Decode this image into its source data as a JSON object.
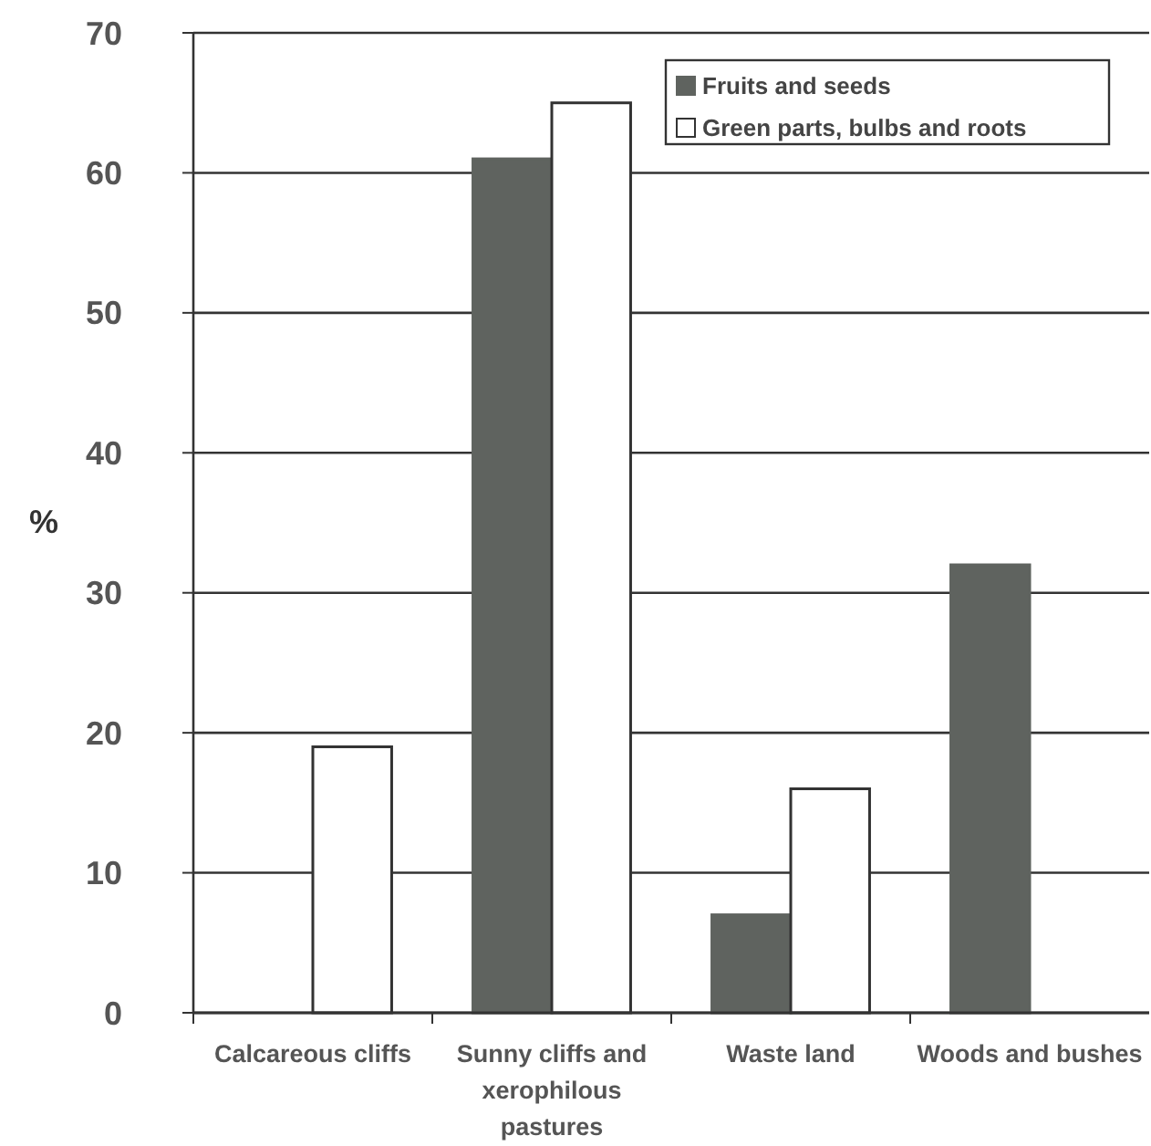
{
  "chart_data": {
    "type": "bar",
    "ylabel": "%",
    "categories": [
      "Calcareous cliffs",
      "Sunny cliffs and xerophilous pastures",
      "Waste land",
      "Woods and bushes"
    ],
    "series": [
      {
        "name": "Fruits and seeds",
        "color": "#5f635f",
        "values": [
          0,
          61,
          7,
          32
        ]
      },
      {
        "name": "Green parts, bulbs and roots",
        "color": "#ffffff",
        "values": [
          19,
          65,
          16,
          0
        ]
      }
    ],
    "ylim": [
      0,
      70
    ],
    "yticks": [
      0,
      10,
      20,
      30,
      40,
      50,
      60,
      70
    ],
    "grid": "y",
    "legend": "top right"
  }
}
